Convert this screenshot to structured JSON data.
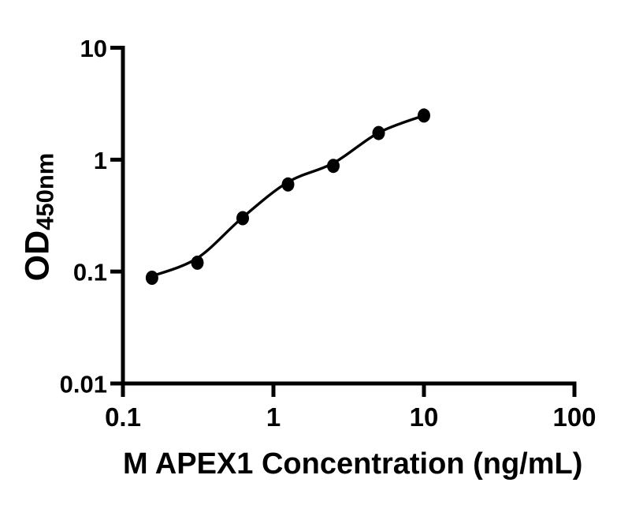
{
  "figure": {
    "background": "#ffffff",
    "axis_color": "#000000"
  },
  "chart_data": {
    "type": "scatter",
    "title": "",
    "xlabel": "M APEX1 Concentration (ng/mL)",
    "ylabel_main": "OD",
    "ylabel_sub": "450nm",
    "x_scale": "log",
    "y_scale": "log",
    "xlim": [
      0.1,
      100
    ],
    "ylim": [
      0.01,
      10
    ],
    "grid": false,
    "legend": "none",
    "x": [
      0.156,
      0.3125,
      0.625,
      1.25,
      2.5,
      5,
      10
    ],
    "y": [
      0.088,
      0.12,
      0.3,
      0.6,
      0.88,
      1.73,
      2.48
    ],
    "fit_curve_y": [
      0.091,
      0.132,
      0.305,
      0.63,
      0.93,
      1.74,
      2.48
    ],
    "x_ticks": [
      0.1,
      1,
      10,
      100
    ],
    "x_tick_labels": [
      "0.1",
      "1",
      "10",
      "100"
    ],
    "y_ticks": [
      0.01,
      0.1,
      1,
      10
    ],
    "y_tick_labels": [
      "0.01",
      "0.1",
      "1",
      "10"
    ],
    "marker_color": "#000000",
    "line_color": "#000000"
  }
}
